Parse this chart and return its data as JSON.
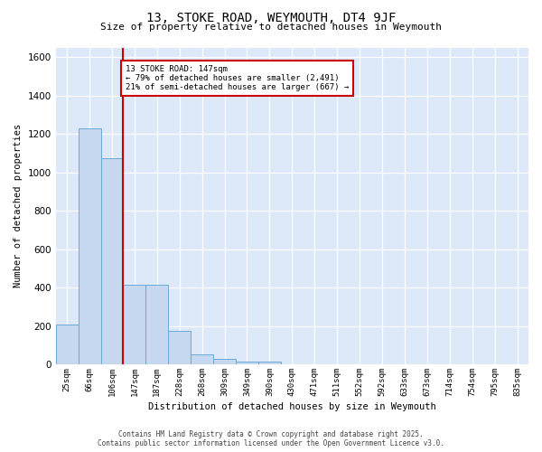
{
  "title": "13, STOKE ROAD, WEYMOUTH, DT4 9JF",
  "subtitle": "Size of property relative to detached houses in Weymouth",
  "xlabel": "Distribution of detached houses by size in Weymouth",
  "ylabel": "Number of detached properties",
  "categories": [
    "25sqm",
    "66sqm",
    "106sqm",
    "147sqm",
    "187sqm",
    "228sqm",
    "268sqm",
    "309sqm",
    "349sqm",
    "390sqm",
    "430sqm",
    "471sqm",
    "511sqm",
    "552sqm",
    "592sqm",
    "633sqm",
    "673sqm",
    "714sqm",
    "754sqm",
    "795sqm",
    "835sqm"
  ],
  "values": [
    205,
    1230,
    1075,
    415,
    415,
    175,
    50,
    28,
    15,
    15,
    0,
    0,
    0,
    0,
    0,
    0,
    0,
    0,
    0,
    0,
    0
  ],
  "bar_color": "#c5d8f0",
  "bar_edge_color": "#6aaad4",
  "red_line_color": "#cc0000",
  "annotation_text": "13 STOKE ROAD: 147sqm\n← 79% of detached houses are smaller (2,491)\n21% of semi-detached houses are larger (667) →",
  "annotation_box_color": "#ffffff",
  "annotation_box_edge": "#cc0000",
  "ylim": [
    0,
    1650
  ],
  "yticks": [
    0,
    200,
    400,
    600,
    800,
    1000,
    1200,
    1400,
    1600
  ],
  "bg_color": "#dde8f8",
  "grid_color": "#ffffff",
  "fig_bg_color": "#ffffff",
  "footer_line1": "Contains HM Land Registry data © Crown copyright and database right 2025.",
  "footer_line2": "Contains public sector information licensed under the Open Government Licence v3.0."
}
